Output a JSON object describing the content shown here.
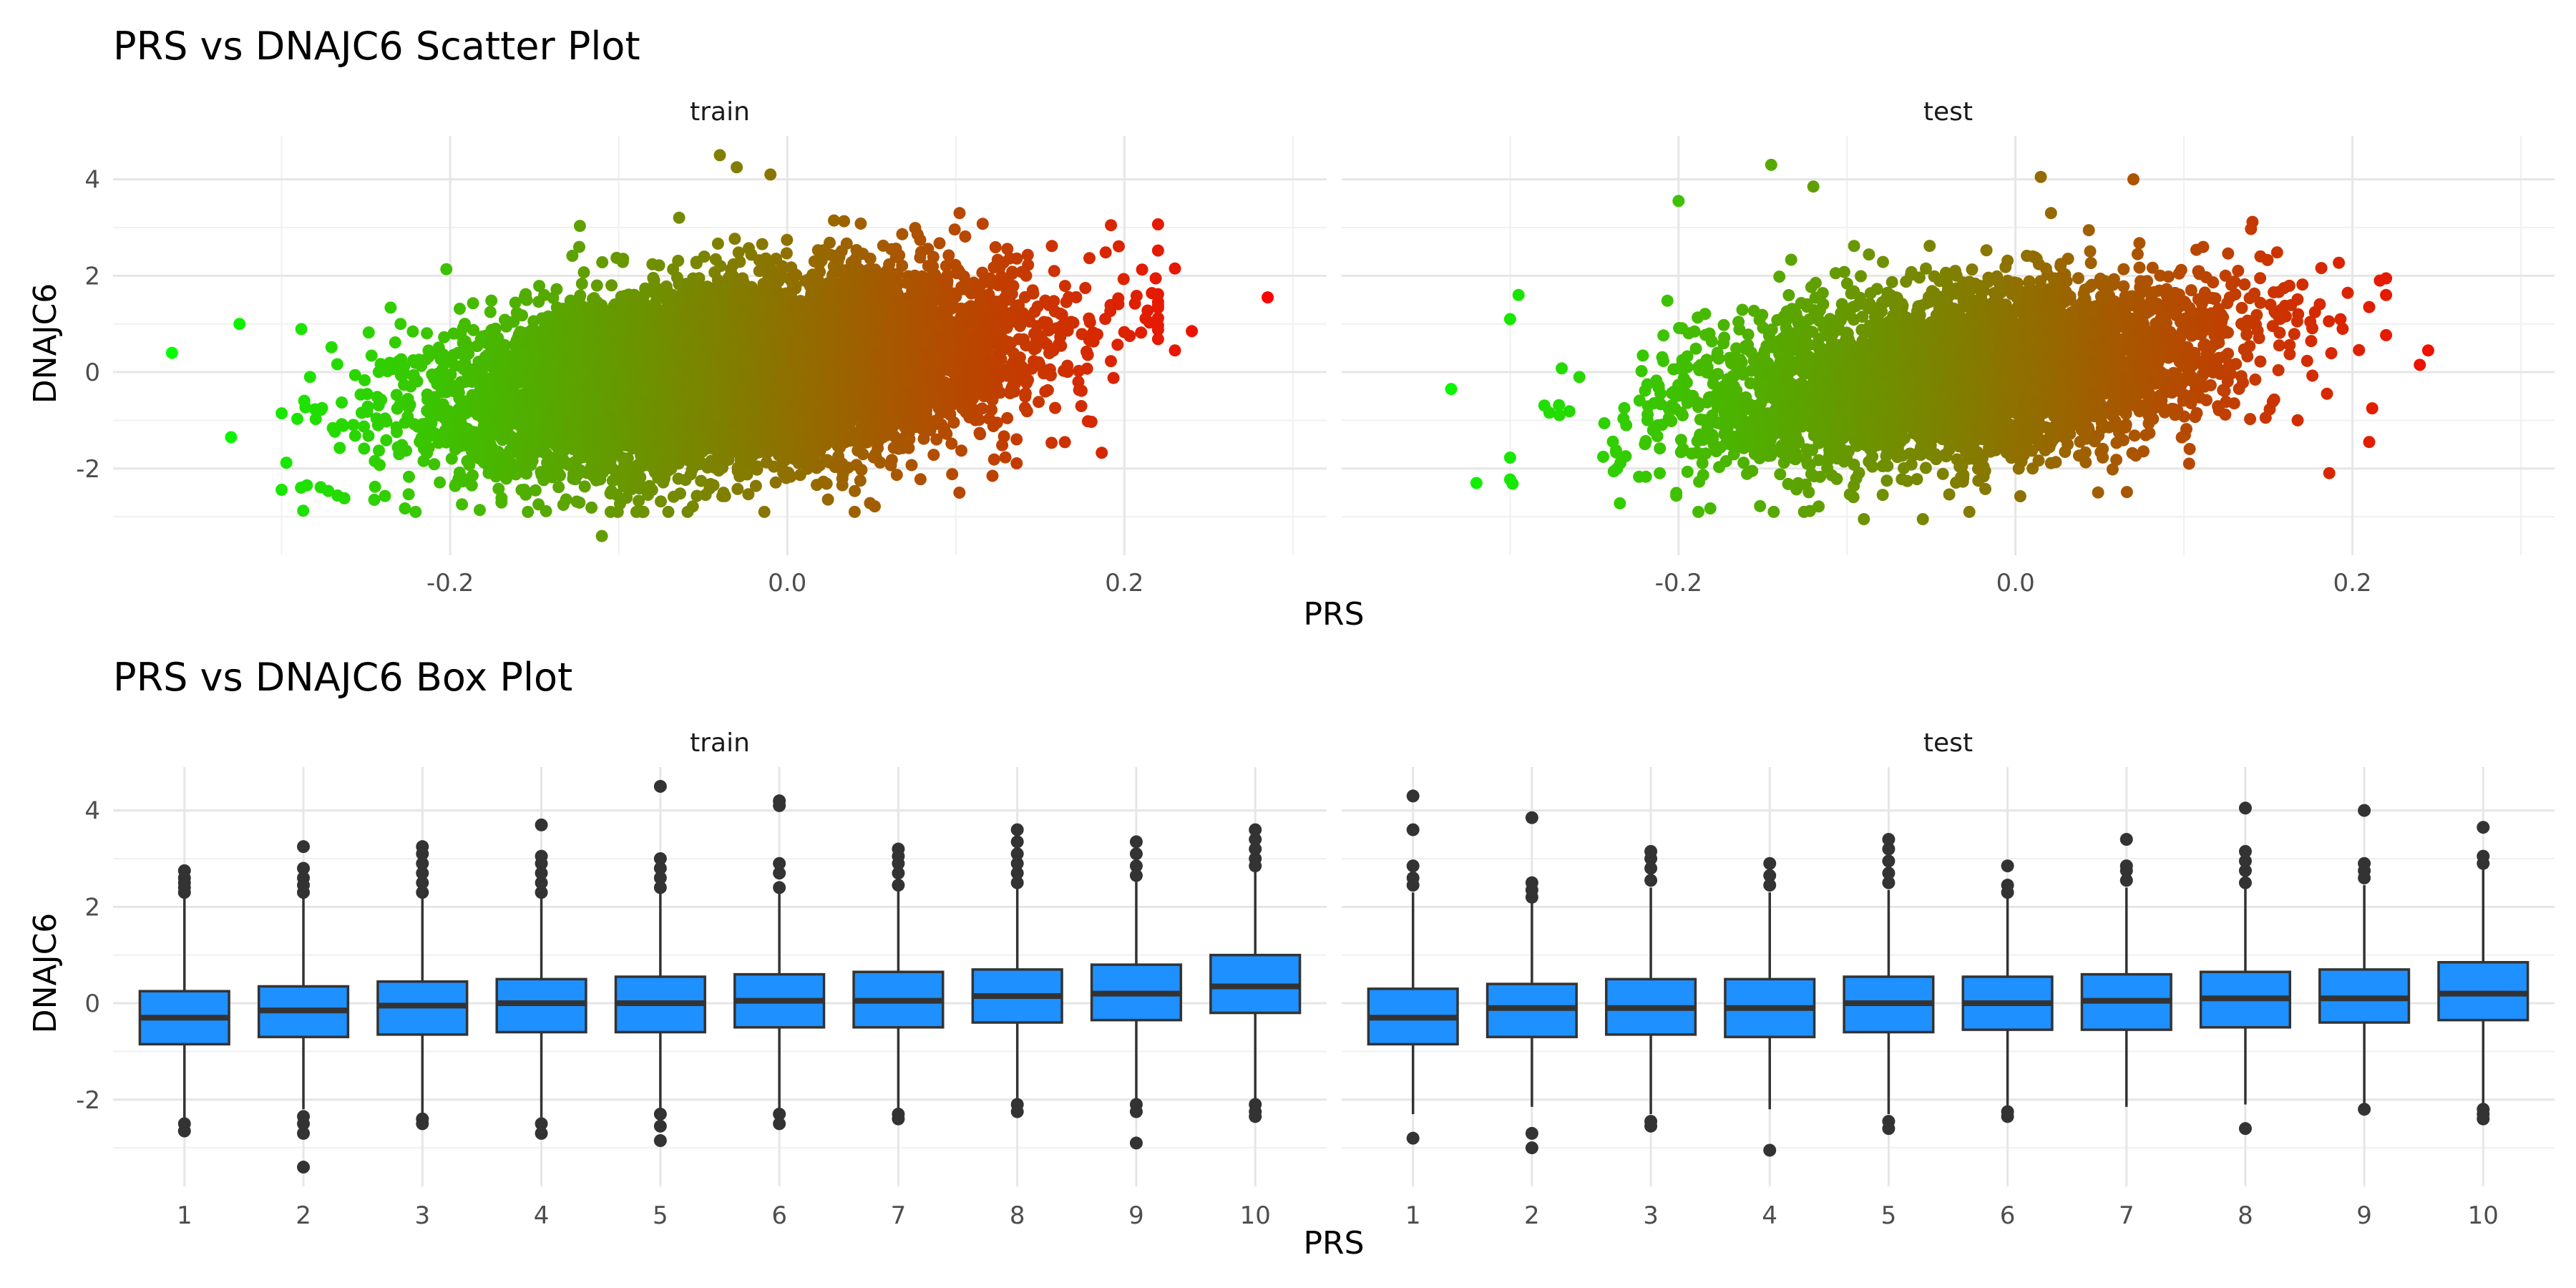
{
  "chart_data": [
    {
      "type": "scatter",
      "title": "PRS vs DNAJC6 Scatter Plot",
      "xlabel": "PRS",
      "ylabel": "DNAJC6",
      "xlim": [
        -0.4,
        0.32
      ],
      "ylim": [
        -3.8,
        4.9
      ],
      "x_ticks": [
        -0.2,
        0.0,
        0.2
      ],
      "x_tick_labels": [
        "-0.2",
        "0.0",
        "0.2"
      ],
      "y_ticks": [
        -2,
        0,
        2,
        4
      ],
      "y_tick_labels": [
        "-2",
        "0",
        "2",
        "4"
      ],
      "grid": true,
      "color_gradient": {
        "low": "#00FF00",
        "high": "#FF0000",
        "mapped_to": "PRS"
      },
      "panels": [
        {
          "label": "train",
          "description_of_cloud": {
            "x_center": -0.03,
            "x_sd": 0.08,
            "y_center": 0.0,
            "y_sd": 0.95,
            "n_points": 9000
          },
          "outliers": [
            {
              "x": -0.365,
              "y": 0.4
            },
            {
              "x": -0.325,
              "y": 1.0
            },
            {
              "x": -0.33,
              "y": -1.35
            },
            {
              "x": -0.285,
              "y": -2.35
            },
            {
              "x": -0.245,
              "y": -2.65
            },
            {
              "x": -0.04,
              "y": 4.5
            },
            {
              "x": -0.03,
              "y": 4.25
            },
            {
              "x": -0.01,
              "y": 4.1
            },
            {
              "x": -0.11,
              "y": -3.4
            },
            {
              "x": 0.04,
              "y": -2.9
            },
            {
              "x": 0.285,
              "y": 1.55
            },
            {
              "x": 0.23,
              "y": 2.15
            },
            {
              "x": 0.24,
              "y": 0.85
            },
            {
              "x": 0.23,
              "y": 0.45
            }
          ]
        },
        {
          "label": "test",
          "description_of_cloud": {
            "x_center": -0.03,
            "x_sd": 0.08,
            "y_center": 0.0,
            "y_sd": 0.95,
            "n_points": 4000
          },
          "outliers": [
            {
              "x": -0.335,
              "y": -0.35
            },
            {
              "x": -0.32,
              "y": -2.3
            },
            {
              "x": -0.3,
              "y": 1.1
            },
            {
              "x": -0.295,
              "y": 1.6
            },
            {
              "x": -0.2,
              "y": 3.55
            },
            {
              "x": -0.145,
              "y": 4.3
            },
            {
              "x": -0.12,
              "y": 3.85
            },
            {
              "x": 0.015,
              "y": 4.05
            },
            {
              "x": 0.07,
              "y": 4.0
            },
            {
              "x": -0.09,
              "y": -3.05
            },
            {
              "x": -0.055,
              "y": -3.05
            },
            {
              "x": 0.245,
              "y": 0.45
            },
            {
              "x": 0.24,
              "y": 0.15
            },
            {
              "x": 0.21,
              "y": -1.45
            },
            {
              "x": 0.21,
              "y": 1.35
            }
          ]
        }
      ]
    },
    {
      "type": "box",
      "title": "PRS vs DNAJC6 Box Plot",
      "xlabel": "PRS",
      "ylabel": "DNAJC6",
      "categories": [
        "1",
        "2",
        "3",
        "4",
        "5",
        "6",
        "7",
        "8",
        "9",
        "10"
      ],
      "ylim": [
        -3.8,
        4.9
      ],
      "y_ticks": [
        -2,
        0,
        2,
        4
      ],
      "y_tick_labels": [
        "-2",
        "0",
        "2",
        "4"
      ],
      "grid": true,
      "fill_color": "#1E90FF",
      "panels": [
        {
          "label": "train",
          "boxes": [
            {
              "q1": -0.85,
              "median": -0.3,
              "q3": 0.25,
              "whisker_low": -2.4,
              "whisker_high": 2.25,
              "outliers": [
                2.3,
                2.4,
                2.5,
                2.6,
                2.75,
                -2.5,
                -2.65
              ]
            },
            {
              "q1": -0.7,
              "median": -0.15,
              "q3": 0.35,
              "whisker_low": -2.2,
              "whisker_high": 2.2,
              "outliers": [
                2.3,
                2.45,
                2.6,
                2.8,
                3.25,
                -2.35,
                -2.5,
                -2.7,
                -3.4
              ]
            },
            {
              "q1": -0.65,
              "median": -0.05,
              "q3": 0.45,
              "whisker_low": -2.3,
              "whisker_high": 2.2,
              "outliers": [
                2.3,
                2.5,
                2.7,
                2.9,
                3.1,
                3.25,
                -2.4,
                -2.5
              ]
            },
            {
              "q1": -0.6,
              "median": 0.0,
              "q3": 0.5,
              "whisker_low": -2.5,
              "whisker_high": 2.2,
              "outliers": [
                2.3,
                2.5,
                2.7,
                2.9,
                3.05,
                3.7,
                -2.5,
                -2.7
              ]
            },
            {
              "q1": -0.6,
              "median": 0.0,
              "q3": 0.55,
              "whisker_low": -2.2,
              "whisker_high": 2.3,
              "outliers": [
                2.4,
                2.6,
                2.8,
                3.0,
                4.5,
                -2.3,
                -2.55,
                -2.85
              ]
            },
            {
              "q1": -0.5,
              "median": 0.05,
              "q3": 0.6,
              "whisker_low": -2.2,
              "whisker_high": 2.3,
              "outliers": [
                2.4,
                2.7,
                2.9,
                4.1,
                4.2,
                -2.3,
                -2.5
              ]
            },
            {
              "q1": -0.5,
              "median": 0.05,
              "q3": 0.65,
              "whisker_low": -2.2,
              "whisker_high": 2.35,
              "outliers": [
                2.45,
                2.7,
                2.9,
                3.05,
                3.2,
                -2.3,
                -2.4
              ]
            },
            {
              "q1": -0.4,
              "median": 0.15,
              "q3": 0.7,
              "whisker_low": -2.0,
              "whisker_high": 2.4,
              "outliers": [
                2.5,
                2.7,
                2.9,
                3.1,
                3.35,
                3.6,
                -2.1,
                -2.25
              ]
            },
            {
              "q1": -0.35,
              "median": 0.2,
              "q3": 0.8,
              "whisker_low": -2.0,
              "whisker_high": 2.55,
              "outliers": [
                2.65,
                2.85,
                3.1,
                3.35,
                -2.1,
                -2.25,
                -2.9
              ]
            },
            {
              "q1": -0.2,
              "median": 0.35,
              "q3": 1.0,
              "whisker_low": -2.0,
              "whisker_high": 2.75,
              "outliers": [
                2.85,
                3.0,
                3.2,
                3.4,
                3.6,
                -2.1,
                -2.25,
                -2.35
              ]
            }
          ]
        },
        {
          "label": "test",
          "boxes": [
            {
              "q1": -0.85,
              "median": -0.3,
              "q3": 0.3,
              "whisker_low": -2.3,
              "whisker_high": 2.3,
              "outliers": [
                2.45,
                2.6,
                2.85,
                3.6,
                4.3,
                -2.8
              ]
            },
            {
              "q1": -0.7,
              "median": -0.1,
              "q3": 0.4,
              "whisker_low": -2.15,
              "whisker_high": 2.1,
              "outliers": [
                2.2,
                2.35,
                2.5,
                3.85,
                -2.7,
                -3.0
              ]
            },
            {
              "q1": -0.65,
              "median": -0.1,
              "q3": 0.5,
              "whisker_low": -2.3,
              "whisker_high": 2.4,
              "outliers": [
                2.55,
                2.8,
                3.0,
                3.15,
                -2.45,
                -2.55
              ]
            },
            {
              "q1": -0.7,
              "median": -0.1,
              "q3": 0.5,
              "whisker_low": -2.2,
              "whisker_high": 2.3,
              "outliers": [
                2.45,
                2.65,
                2.9,
                -3.05
              ]
            },
            {
              "q1": -0.6,
              "median": 0.0,
              "q3": 0.55,
              "whisker_low": -2.3,
              "whisker_high": 2.35,
              "outliers": [
                2.5,
                2.7,
                2.95,
                3.2,
                3.4,
                -2.45,
                -2.6
              ]
            },
            {
              "q1": -0.55,
              "median": 0.0,
              "q3": 0.55,
              "whisker_low": -2.15,
              "whisker_high": 2.2,
              "outliers": [
                2.3,
                2.45,
                2.85,
                -2.25,
                -2.35
              ]
            },
            {
              "q1": -0.55,
              "median": 0.05,
              "q3": 0.6,
              "whisker_low": -2.15,
              "whisker_high": 2.4,
              "outliers": [
                2.55,
                2.75,
                2.85,
                3.4
              ]
            },
            {
              "q1": -0.5,
              "median": 0.1,
              "q3": 0.65,
              "whisker_low": -2.1,
              "whisker_high": 2.4,
              "outliers": [
                2.5,
                2.75,
                2.95,
                3.15,
                4.05,
                -2.6
              ]
            },
            {
              "q1": -0.4,
              "median": 0.1,
              "q3": 0.7,
              "whisker_low": -2.1,
              "whisker_high": 2.45,
              "outliers": [
                2.6,
                2.75,
                2.9,
                4.0,
                -2.2
              ]
            },
            {
              "q1": -0.35,
              "median": 0.2,
              "q3": 0.85,
              "whisker_low": -2.1,
              "whisker_high": 2.8,
              "outliers": [
                2.9,
                3.05,
                3.65,
                -2.2,
                -2.3,
                -2.4
              ]
            }
          ]
        }
      ]
    }
  ]
}
